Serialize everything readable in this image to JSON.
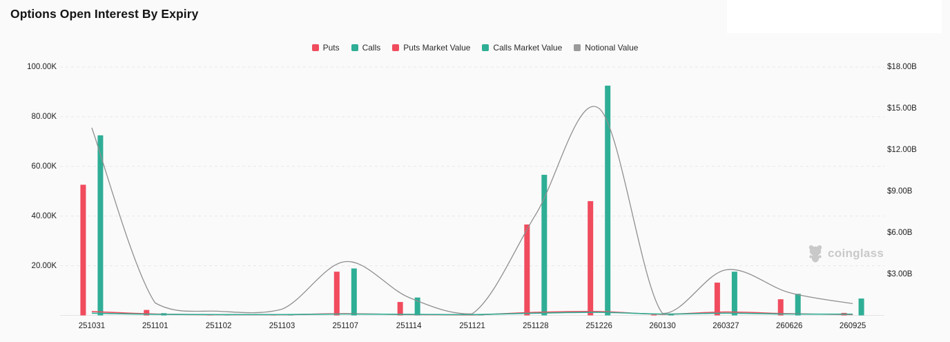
{
  "page": {
    "title": "Options Open Interest By Expiry"
  },
  "legend": {
    "items": [
      {
        "label": "Puts",
        "color": "#f04c5e"
      },
      {
        "label": "Calls",
        "color": "#2fae96"
      },
      {
        "label": "Puts Market Value",
        "color": "#f04c5e"
      },
      {
        "label": "Calls Market Value",
        "color": "#2fae96"
      },
      {
        "label": "Notional Value",
        "color": "#9a9a9a"
      }
    ]
  },
  "watermark": {
    "brand": "coinglass"
  },
  "chart_data": {
    "type": "bar",
    "subtype": "grouped bars + smooth lines (dual axis)",
    "title": "Options Open Interest By Expiry",
    "legend_position": "top-center",
    "grid": "horizontal dashed gridlines for left-axis ticks",
    "categories": [
      "251031",
      "251101",
      "251102",
      "251103",
      "251107",
      "251114",
      "251121",
      "251128",
      "251226",
      "260130",
      "260327",
      "260626",
      "260925"
    ],
    "left_axis": {
      "unit": "K contracts",
      "max": 100,
      "ticks": [
        {
          "value": 100,
          "label": "100.00K"
        },
        {
          "value": 80,
          "label": "80.00K"
        },
        {
          "value": 60,
          "label": "60.00K"
        },
        {
          "value": 40,
          "label": "40.00K"
        },
        {
          "value": 20,
          "label": "20.00K"
        }
      ]
    },
    "right_axis": {
      "unit": "USD billions",
      "max": 18,
      "ticks": [
        {
          "value": 18,
          "label": "$18.00B"
        },
        {
          "value": 15,
          "label": "$15.00B"
        },
        {
          "value": 12,
          "label": "$12.00B"
        },
        {
          "value": 9,
          "label": "$9.00B"
        },
        {
          "value": 6,
          "label": "$6.00B"
        },
        {
          "value": 3,
          "label": "$3.00B"
        }
      ]
    },
    "series": [
      {
        "name": "Puts",
        "type": "bar",
        "axis": "left",
        "color": "#f04c5e",
        "values": [
          52.6,
          2.2,
          0.15,
          0.15,
          17.6,
          5.4,
          0.15,
          36.6,
          46.0,
          0.25,
          13.2,
          6.5,
          1.0
        ]
      },
      {
        "name": "Calls",
        "type": "bar",
        "axis": "left",
        "color": "#2fae96",
        "values": [
          72.5,
          0.9,
          0.3,
          0.25,
          18.9,
          7.2,
          0.25,
          56.6,
          92.5,
          0.35,
          17.6,
          8.7,
          6.8
        ]
      },
      {
        "name": "Puts Market Value",
        "type": "line",
        "axis": "right",
        "color": "#f04c5e",
        "values": [
          0.28,
          0.1,
          0.05,
          0.05,
          0.12,
          0.06,
          0.04,
          0.22,
          0.28,
          0.08,
          0.25,
          0.12,
          0.06
        ]
      },
      {
        "name": "Calls Market Value",
        "type": "line",
        "axis": "right",
        "color": "#2fae96",
        "values": [
          0.16,
          0.08,
          0.06,
          0.06,
          0.1,
          0.08,
          0.06,
          0.16,
          0.22,
          0.1,
          0.16,
          0.1,
          0.09
        ]
      },
      {
        "name": "Notional Value",
        "type": "line",
        "axis": "right",
        "color": "#8f8f8f",
        "values": [
          13.6,
          0.9,
          0.3,
          0.45,
          3.9,
          1.3,
          0.12,
          7.3,
          15.0,
          0.15,
          3.3,
          1.65,
          0.85
        ]
      }
    ]
  }
}
